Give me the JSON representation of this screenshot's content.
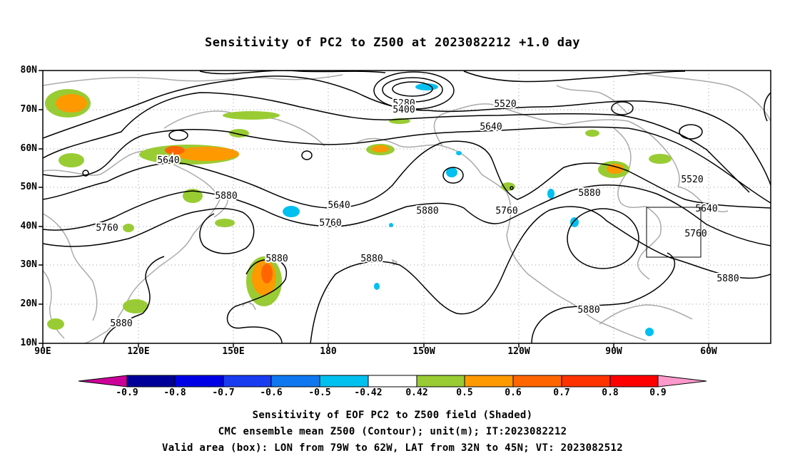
{
  "title": "Sensitivity of PC2 to Z500 at 2023082212 +1.0 day",
  "lat_labels": [
    "80N",
    "70N",
    "60N",
    "50N",
    "40N",
    "30N",
    "20N",
    "10N"
  ],
  "lon_labels": [
    "90E",
    "120E",
    "150E",
    "180",
    "150W",
    "120W",
    "90W",
    "60W"
  ],
  "contour_labels": [
    "5280",
    "5400",
    "5520",
    "5640",
    "5640",
    "5640",
    "5520",
    "5640",
    "5880",
    "5880",
    "5760",
    "5760",
    "5880",
    "5760",
    "5880",
    "5880",
    "5760",
    "5880",
    "5880",
    "5880"
  ],
  "colorbar": {
    "labels": [
      "-0.9",
      "-0.8",
      "-0.7",
      "-0.6",
      "-0.5",
      "-0.42",
      "0.42",
      "0.5",
      "0.6",
      "0.7",
      "0.8",
      "0.9"
    ],
    "colors": [
      "#000099",
      "#0000e6",
      "#1a3cf0",
      "#0f78f0",
      "#00c0f0",
      "#ffffff",
      "#99cc33",
      "#ff9900",
      "#ff6600",
      "#ff3300",
      "#ff0000"
    ],
    "low_arrow_color": "#cc0099",
    "high_arrow_color": "#ff99cc"
  },
  "shading_colors": {
    "green": "#99cc33",
    "orange": "#ff9900",
    "deep_orange": "#ff6600",
    "red": "#ff3300",
    "cyan": "#00c0f0"
  },
  "footer": [
    "Sensitivity of EOF PC2 to Z500 field (Shaded)",
    "CMC ensemble mean Z500 (Contour); unit(m); IT:2023082212",
    "Valid area (box): LON from 79W to 62W, LAT from 32N to 45N; VT: 2023082512"
  ]
}
